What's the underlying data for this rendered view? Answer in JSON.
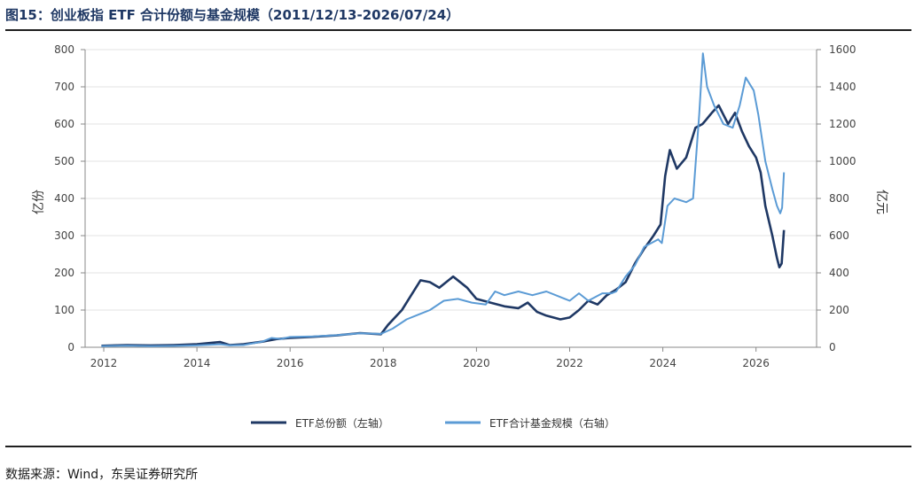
{
  "header": {
    "title": "图15：创业板指 ETF 合计份额与基金规模（2011/12/13-2026/07/24）"
  },
  "footer": {
    "source": "数据来源：Wind，东吴证券研究所"
  },
  "chart_data": {
    "type": "line",
    "ylabel_left": "亿份",
    "ylabel_right": "亿元",
    "ylim_left": [
      0,
      800
    ],
    "ylim_right": [
      0,
      1600
    ],
    "yticks_left": [
      0,
      100,
      200,
      300,
      400,
      500,
      600,
      700,
      800
    ],
    "yticks_right": [
      0,
      200,
      400,
      600,
      800,
      1000,
      1200,
      1400,
      1600
    ],
    "xlim": [
      2011.6,
      2027.3
    ],
    "xticks": [
      2012,
      2014,
      2016,
      2018,
      2020,
      2022,
      2024,
      2026
    ],
    "grid": "horizontal",
    "legend_position": "bottom-center",
    "series": [
      {
        "name": "ETF总份额（左轴）",
        "axis": "left",
        "color": "#1f3864",
        "points": [
          [
            2011.95,
            4
          ],
          [
            2012.5,
            6
          ],
          [
            2013.0,
            5
          ],
          [
            2013.5,
            6
          ],
          [
            2014.0,
            8
          ],
          [
            2014.5,
            14
          ],
          [
            2014.7,
            6
          ],
          [
            2015.0,
            8
          ],
          [
            2015.4,
            15
          ],
          [
            2015.7,
            22
          ],
          [
            2016.0,
            25
          ],
          [
            2016.5,
            28
          ],
          [
            2017.0,
            32
          ],
          [
            2017.5,
            38
          ],
          [
            2017.95,
            35
          ],
          [
            2018.1,
            60
          ],
          [
            2018.4,
            100
          ],
          [
            2018.6,
            140
          ],
          [
            2018.8,
            180
          ],
          [
            2019.0,
            175
          ],
          [
            2019.2,
            160
          ],
          [
            2019.5,
            190
          ],
          [
            2019.8,
            160
          ],
          [
            2020.0,
            130
          ],
          [
            2020.3,
            120
          ],
          [
            2020.6,
            110
          ],
          [
            2020.9,
            105
          ],
          [
            2021.1,
            120
          ],
          [
            2021.3,
            95
          ],
          [
            2021.5,
            85
          ],
          [
            2021.8,
            75
          ],
          [
            2022.0,
            80
          ],
          [
            2022.2,
            100
          ],
          [
            2022.4,
            125
          ],
          [
            2022.6,
            115
          ],
          [
            2022.8,
            140
          ],
          [
            2023.0,
            155
          ],
          [
            2023.2,
            175
          ],
          [
            2023.4,
            225
          ],
          [
            2023.6,
            265
          ],
          [
            2023.8,
            300
          ],
          [
            2023.95,
            330
          ],
          [
            2024.05,
            460
          ],
          [
            2024.15,
            530
          ],
          [
            2024.3,
            480
          ],
          [
            2024.5,
            510
          ],
          [
            2024.7,
            590
          ],
          [
            2024.85,
            600
          ],
          [
            2024.92,
            610
          ],
          [
            2025.05,
            630
          ],
          [
            2025.2,
            650
          ],
          [
            2025.4,
            600
          ],
          [
            2025.55,
            630
          ],
          [
            2025.7,
            580
          ],
          [
            2025.85,
            540
          ],
          [
            2026.0,
            510
          ],
          [
            2026.1,
            470
          ],
          [
            2026.2,
            380
          ],
          [
            2026.35,
            300
          ],
          [
            2026.45,
            240
          ],
          [
            2026.5,
            215
          ],
          [
            2026.55,
            225
          ],
          [
            2026.6,
            315
          ]
        ]
      },
      {
        "name": "ETF合计基金规模（右轴）",
        "axis": "right",
        "color": "#5b9bd5",
        "points": [
          [
            2011.95,
            6
          ],
          [
            2012.5,
            8
          ],
          [
            2013.0,
            6
          ],
          [
            2013.5,
            7
          ],
          [
            2014.0,
            10
          ],
          [
            2014.5,
            16
          ],
          [
            2014.7,
            10
          ],
          [
            2015.0,
            12
          ],
          [
            2015.4,
            30
          ],
          [
            2015.6,
            50
          ],
          [
            2015.8,
            45
          ],
          [
            2016.0,
            55
          ],
          [
            2016.5,
            58
          ],
          [
            2017.0,
            65
          ],
          [
            2017.5,
            75
          ],
          [
            2017.95,
            72
          ],
          [
            2018.2,
            100
          ],
          [
            2018.5,
            150
          ],
          [
            2018.8,
            180
          ],
          [
            2019.0,
            200
          ],
          [
            2019.3,
            250
          ],
          [
            2019.6,
            260
          ],
          [
            2019.9,
            240
          ],
          [
            2020.2,
            230
          ],
          [
            2020.4,
            300
          ],
          [
            2020.6,
            280
          ],
          [
            2020.9,
            300
          ],
          [
            2021.2,
            280
          ],
          [
            2021.5,
            300
          ],
          [
            2021.8,
            270
          ],
          [
            2022.0,
            250
          ],
          [
            2022.2,
            290
          ],
          [
            2022.4,
            250
          ],
          [
            2022.7,
            290
          ],
          [
            2022.9,
            290
          ],
          [
            2023.0,
            300
          ],
          [
            2023.2,
            380
          ],
          [
            2023.4,
            440
          ],
          [
            2023.6,
            540
          ],
          [
            2023.9,
            580
          ],
          [
            2023.98,
            560
          ],
          [
            2024.1,
            760
          ],
          [
            2024.25,
            800
          ],
          [
            2024.5,
            780
          ],
          [
            2024.65,
            800
          ],
          [
            2024.78,
            1250
          ],
          [
            2024.86,
            1580
          ],
          [
            2024.95,
            1400
          ],
          [
            2025.1,
            1300
          ],
          [
            2025.3,
            1200
          ],
          [
            2025.5,
            1180
          ],
          [
            2025.65,
            1300
          ],
          [
            2025.78,
            1450
          ],
          [
            2025.95,
            1380
          ],
          [
            2026.05,
            1250
          ],
          [
            2026.2,
            1000
          ],
          [
            2026.35,
            850
          ],
          [
            2026.45,
            760
          ],
          [
            2026.52,
            720
          ],
          [
            2026.56,
            750
          ],
          [
            2026.6,
            940
          ]
        ]
      }
    ]
  }
}
